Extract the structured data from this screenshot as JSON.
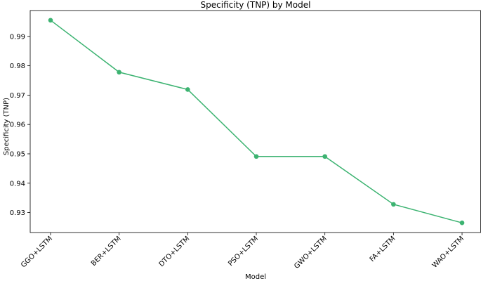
{
  "chart_data": {
    "type": "line",
    "title": "Specificity (TNP) by Model",
    "xlabel": "Model",
    "ylabel": "Specificity (TNP)",
    "categories": [
      "GGO+LSTM",
      "BER+LSTM",
      "DTO+LSTM",
      "PSO+LSTM",
      "GWO+LSTM",
      "FA+LSTM",
      "WAO+LSTM"
    ],
    "series": [
      {
        "values": [
          0.9955,
          0.9778,
          0.9719,
          0.9491,
          0.9491,
          0.9328,
          0.9265
        ],
        "color": "#3cb371",
        "marker": "circle"
      }
    ],
    "yticks": [
      0.93,
      0.94,
      0.95,
      0.96,
      0.97,
      0.98,
      0.99
    ],
    "ylim": [
      0.9232,
      0.9988
    ],
    "grid": false,
    "legend": "none"
  }
}
